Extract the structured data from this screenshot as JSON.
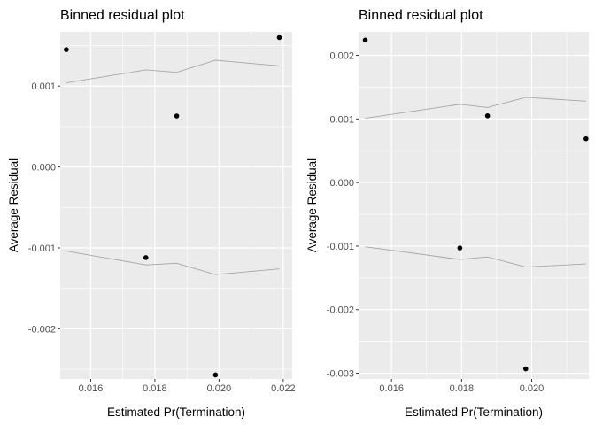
{
  "chart_data": [
    {
      "type": "scatter",
      "title": "Binned residual plot",
      "xlabel": "Estimated Pr(Termination)",
      "ylabel": "Average Residual",
      "xlim": [
        0.01505,
        0.02228
      ],
      "ylim": [
        -0.00262,
        0.00167
      ],
      "xticks": [
        0.016,
        0.018,
        0.02,
        0.022
      ],
      "xtick_labels": [
        "0.016",
        "0.018",
        "0.020",
        "0.022"
      ],
      "yticks": [
        -0.002,
        -0.001,
        0.0,
        0.001
      ],
      "ytick_labels": [
        "-0.002",
        "-0.001",
        "0.000",
        "0.001"
      ],
      "grid": true,
      "points": {
        "x": [
          0.01524,
          0.01772,
          0.01868,
          0.01989,
          0.02188
        ],
        "y": [
          0.00145,
          -0.00112,
          0.00063,
          -0.00257,
          0.0016
        ]
      },
      "band_upper": {
        "x": [
          0.01524,
          0.01772,
          0.01868,
          0.01989,
          0.02188
        ],
        "y": [
          0.00104,
          0.0012,
          0.00117,
          0.00132,
          0.00125
        ]
      },
      "band_lower": {
        "x": [
          0.01524,
          0.01772,
          0.01868,
          0.01989,
          0.02188
        ],
        "y": [
          -0.00104,
          -0.00121,
          -0.00119,
          -0.00133,
          -0.00126
        ]
      },
      "colors": {
        "points": "#000000",
        "band": "#a6a6a6",
        "panel": "#ebebeb",
        "grid": "#ffffff"
      }
    },
    {
      "type": "scatter",
      "title": "Binned residual plot",
      "xlabel": "Estimated Pr(Termination)",
      "ylabel": "Average Residual",
      "xlim": [
        0.01506,
        0.02163
      ],
      "ylim": [
        -0.00309,
        0.00237
      ],
      "xticks": [
        0.016,
        0.018,
        0.02
      ],
      "xtick_labels": [
        "0.016",
        "0.018",
        "0.020"
      ],
      "yticks": [
        -0.003,
        -0.002,
        -0.001,
        0.0,
        0.001,
        0.002
      ],
      "ytick_labels": [
        "-0.003",
        "-0.002",
        "-0.001",
        "0.000",
        "0.001",
        "0.002"
      ],
      "grid": true,
      "points": {
        "x": [
          0.01525,
          0.01795,
          0.01874,
          0.01983,
          0.02155
        ],
        "y": [
          0.00224,
          -0.00103,
          0.00105,
          -0.00293,
          0.00069
        ]
      },
      "band_upper": {
        "x": [
          0.01525,
          0.01795,
          0.01874,
          0.01983,
          0.02155
        ],
        "y": [
          0.00101,
          0.00123,
          0.00118,
          0.00134,
          0.00128
        ]
      },
      "band_lower": {
        "x": [
          0.01525,
          0.01795,
          0.01874,
          0.01983,
          0.02155
        ],
        "y": [
          -0.00101,
          -0.00121,
          -0.00117,
          -0.00133,
          -0.00128
        ]
      },
      "colors": {
        "points": "#000000",
        "band": "#a6a6a6",
        "panel": "#ebebeb",
        "grid": "#ffffff"
      }
    }
  ]
}
